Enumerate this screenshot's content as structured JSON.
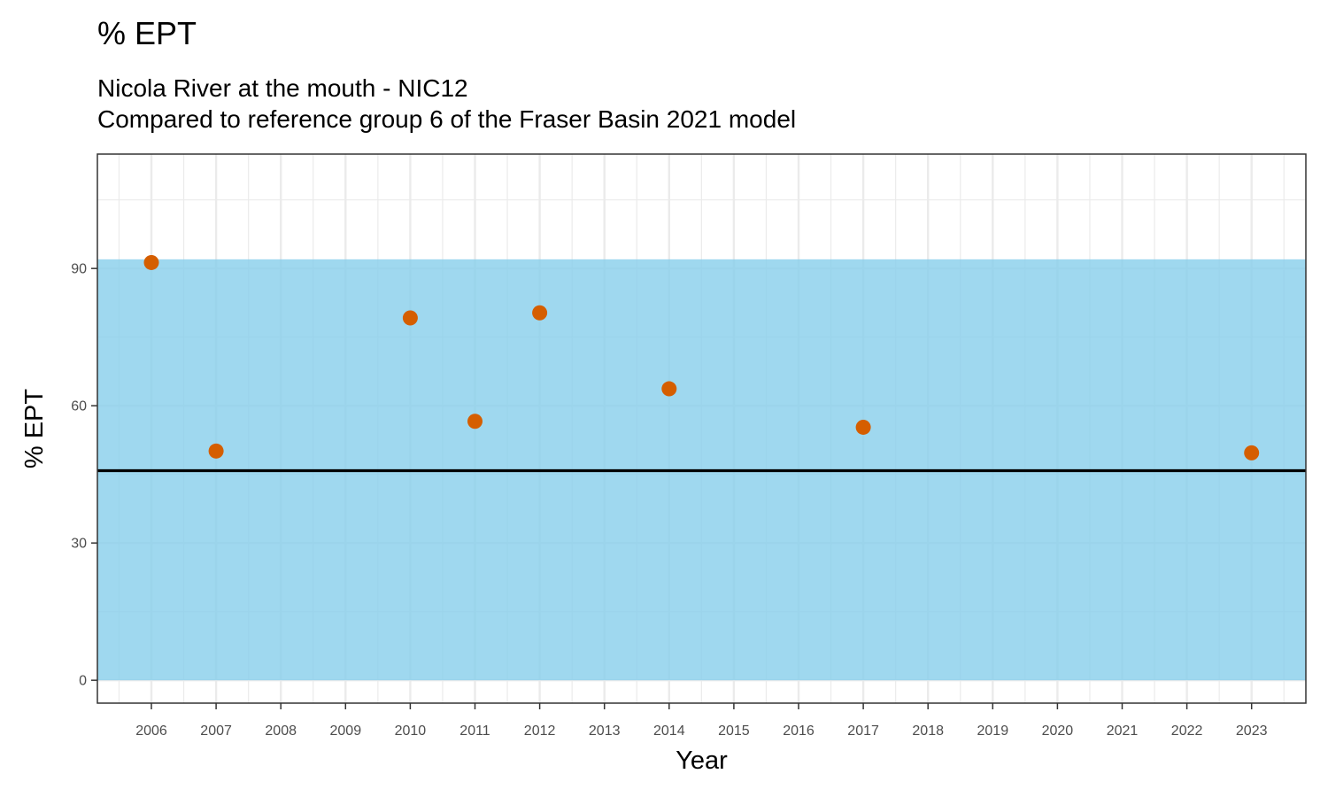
{
  "title": "% EPT",
  "subtitle_lines": [
    "Nicola River at the mouth - NIC12",
    "Compared to reference group 6 of the Fraser Basin 2021 model"
  ],
  "colors": {
    "band": "#87CEEB",
    "points": "#D55E00",
    "reference_line": "#000000",
    "grid": "#EBEBEB",
    "panel_border": "#333333"
  },
  "chart_data": {
    "type": "scatter",
    "title": "% EPT",
    "xlabel": "Year",
    "ylabel": "% EPT",
    "x_categories": [
      "2006",
      "2007",
      "2008",
      "2009",
      "2010",
      "2011",
      "2012",
      "2013",
      "2014",
      "2015",
      "2016",
      "2017",
      "2018",
      "2019",
      "2020",
      "2021",
      "2022",
      "2023"
    ],
    "points": [
      {
        "x": "2006",
        "y": 91.3
      },
      {
        "x": "2007",
        "y": 50.1
      },
      {
        "x": "2010",
        "y": 79.2
      },
      {
        "x": "2011",
        "y": 56.6
      },
      {
        "x": "2012",
        "y": 80.3
      },
      {
        "x": "2014",
        "y": 63.7
      },
      {
        "x": "2017",
        "y": 55.3
      },
      {
        "x": "2023",
        "y": 49.7
      }
    ],
    "reference_line_y": 45.8,
    "reference_band": {
      "ymin": 0,
      "ymax": 92
    },
    "yticks": [
      0,
      30,
      60,
      90
    ],
    "ylim": [
      -5,
      115
    ],
    "grid": true
  }
}
